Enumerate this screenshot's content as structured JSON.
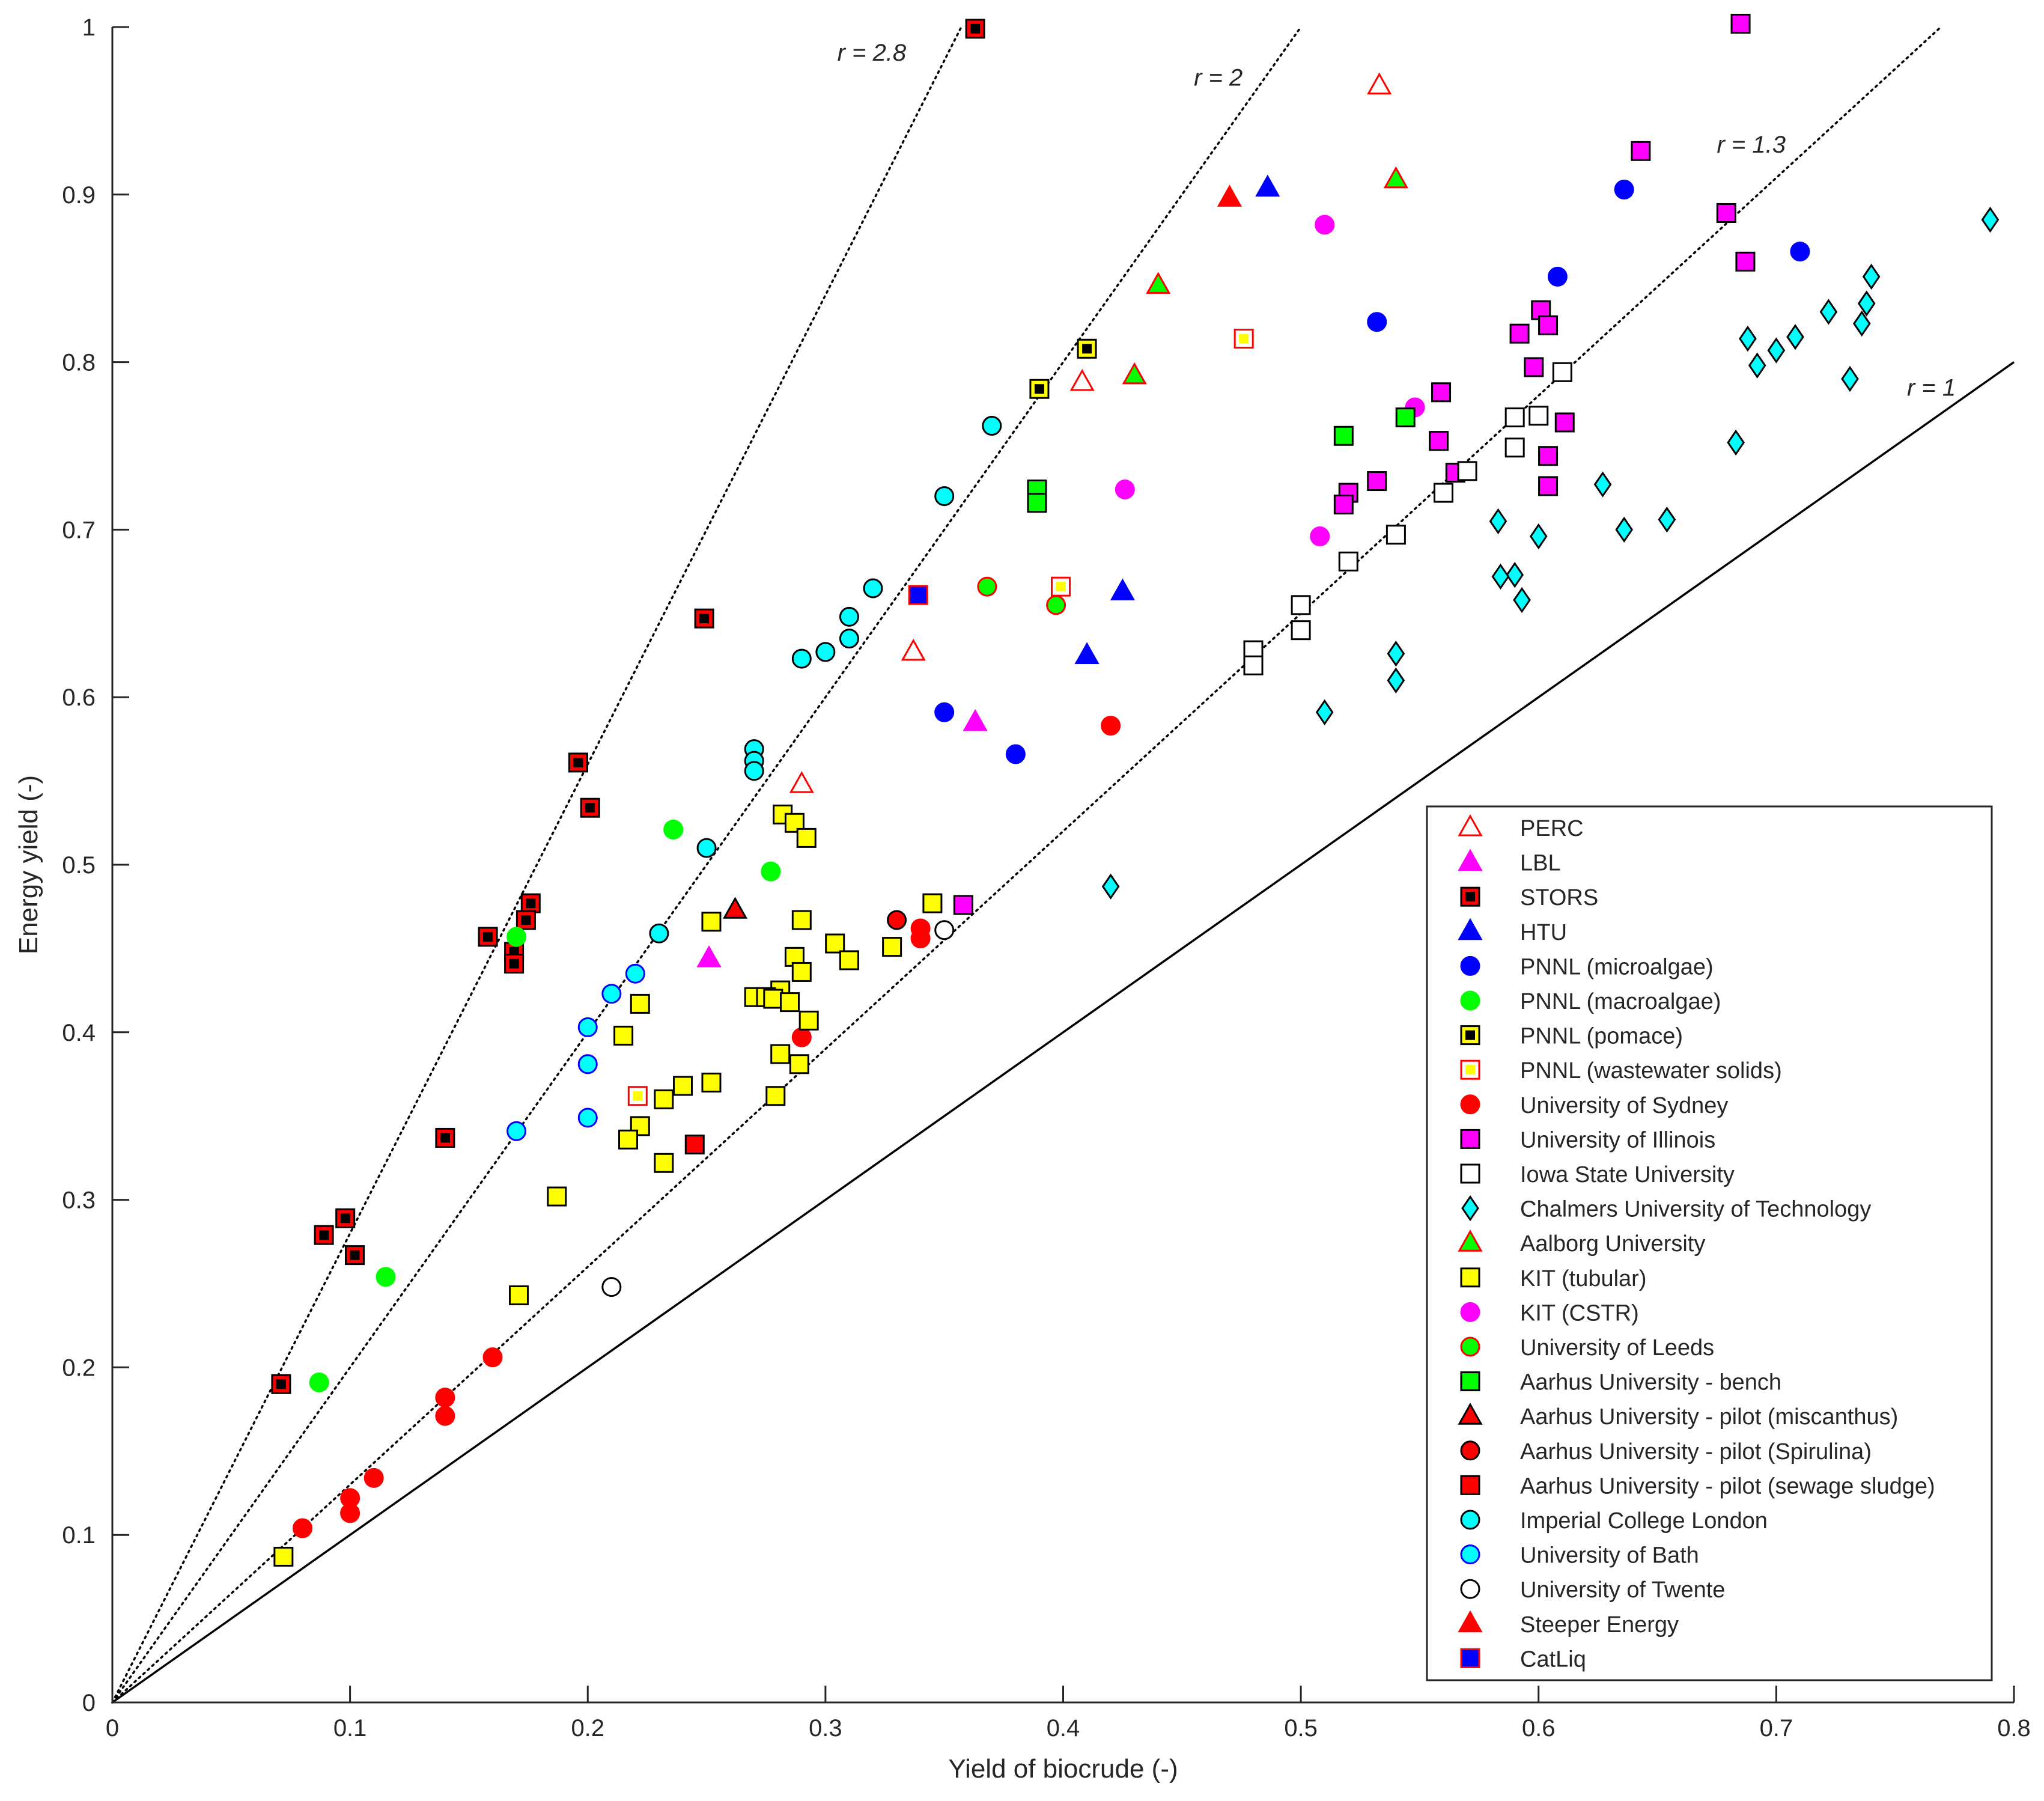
{
  "chart_data": {
    "type": "scatter",
    "xlabel": "Yield of biocrude (-)",
    "ylabel": "Energy yield (-)",
    "xlim": [
      0,
      0.8
    ],
    "ylim": [
      0,
      1
    ],
    "xticks": [
      "0",
      "0.1",
      "0.2",
      "0.3",
      "0.4",
      "0.5",
      "0.6",
      "0.7",
      "0.8"
    ],
    "yticks": [
      "0",
      "0.1",
      "0.2",
      "0.3",
      "0.4",
      "0.5",
      "0.6",
      "0.7",
      "0.8",
      "0.9",
      "1"
    ],
    "xtick_values": [
      0,
      0.1,
      0.2,
      0.3,
      0.4,
      0.5,
      0.6,
      0.7,
      0.8
    ],
    "ytick_values": [
      0,
      0.1,
      0.2,
      0.3,
      0.4,
      0.5,
      0.6,
      0.7,
      0.8,
      0.9,
      1
    ],
    "legend_position": "bottom-right",
    "reference_lines": [
      {
        "label": "r = 2.8",
        "slope": 2.8,
        "style": "dotted",
        "label_x": 0.305,
        "label_y": 0.985
      },
      {
        "label": "r = 2",
        "slope": 2,
        "style": "dotted",
        "label_x": 0.455,
        "label_y": 0.97
      },
      {
        "label": "r = 1.3",
        "slope": 1.3,
        "style": "dotted",
        "label_x": 0.675,
        "label_y": 0.93
      },
      {
        "label": "r = 1",
        "slope": 1,
        "style": "solid",
        "label_x": 0.755,
        "label_y": 0.785
      }
    ],
    "series": [
      {
        "name": "PERC",
        "marker": "triangle",
        "fill": "#ffffff",
        "edge": "#ff0000",
        "center": null,
        "points": [
          [
            0.533,
            0.965
          ],
          [
            0.337,
            0.627
          ],
          [
            0.408,
            0.788
          ],
          [
            0.29,
            0.548
          ]
        ]
      },
      {
        "name": "LBL",
        "marker": "triangle",
        "fill": "#ff00ff",
        "edge": "#ff00ff",
        "center": null,
        "points": [
          [
            0.363,
            0.585
          ],
          [
            0.251,
            0.444
          ]
        ]
      },
      {
        "name": "STORS",
        "marker": "square",
        "fill": "#ff0000",
        "edge": "#000000",
        "center": "#000000",
        "points": [
          [
            0.363,
            0.999
          ],
          [
            0.249,
            0.647
          ],
          [
            0.196,
            0.561
          ],
          [
            0.201,
            0.534
          ],
          [
            0.176,
            0.477
          ],
          [
            0.174,
            0.467
          ],
          [
            0.158,
            0.457
          ],
          [
            0.169,
            0.448
          ],
          [
            0.169,
            0.441
          ],
          [
            0.14,
            0.337
          ],
          [
            0.098,
            0.289
          ],
          [
            0.089,
            0.279
          ],
          [
            0.102,
            0.267
          ],
          [
            0.071,
            0.19
          ]
        ]
      },
      {
        "name": "HTU",
        "marker": "triangle",
        "fill": "#0000ff",
        "edge": "#0000ff",
        "center": null,
        "points": [
          [
            0.486,
            0.904
          ],
          [
            0.425,
            0.663
          ],
          [
            0.41,
            0.625
          ]
        ]
      },
      {
        "name": "PNNL (microalgae)",
        "marker": "circle",
        "fill": "#0000ff",
        "edge": "#0000ff",
        "center": null,
        "points": [
          [
            0.636,
            0.903
          ],
          [
            0.608,
            0.851
          ],
          [
            0.71,
            0.866
          ],
          [
            0.532,
            0.824
          ],
          [
            0.35,
            0.591
          ],
          [
            0.38,
            0.566
          ]
        ]
      },
      {
        "name": "PNNL (macroalgae)",
        "marker": "circle",
        "fill": "#00ff00",
        "edge": "#00ff00",
        "center": null,
        "points": [
          [
            0.236,
            0.521
          ],
          [
            0.277,
            0.496
          ],
          [
            0.17,
            0.457
          ],
          [
            0.115,
            0.254
          ],
          [
            0.087,
            0.191
          ]
        ]
      },
      {
        "name": "PNNL (pomace)",
        "marker": "square",
        "fill": "#ffff00",
        "edge": "#000000",
        "center": "#000000",
        "points": [
          [
            0.41,
            0.808
          ],
          [
            0.39,
            0.784
          ]
        ]
      },
      {
        "name": "PNNL (wastewater solids)",
        "marker": "square",
        "fill": "#ffffff",
        "edge": "#ff0000",
        "center": "#ffff00",
        "points": [
          [
            0.476,
            0.814
          ],
          [
            0.399,
            0.666
          ],
          [
            0.221,
            0.362
          ]
        ]
      },
      {
        "name": "University of Sydney",
        "marker": "circle",
        "fill": "#ff0000",
        "edge": "#ff0000",
        "center": null,
        "points": [
          [
            0.42,
            0.583
          ],
          [
            0.34,
            0.462
          ],
          [
            0.34,
            0.456
          ],
          [
            0.29,
            0.397
          ],
          [
            0.16,
            0.206
          ],
          [
            0.14,
            0.182
          ],
          [
            0.14,
            0.171
          ],
          [
            0.11,
            0.134
          ],
          [
            0.1,
            0.122
          ],
          [
            0.1,
            0.113
          ],
          [
            0.08,
            0.104
          ]
        ]
      },
      {
        "name": "University of Illinois",
        "marker": "square",
        "fill": "#ff00ff",
        "edge": "#000000",
        "center": null,
        "points": [
          [
            0.685,
            1.002
          ],
          [
            0.643,
            0.926
          ],
          [
            0.679,
            0.889
          ],
          [
            0.687,
            0.86
          ],
          [
            0.601,
            0.831
          ],
          [
            0.604,
            0.822
          ],
          [
            0.592,
            0.817
          ],
          [
            0.598,
            0.797
          ],
          [
            0.559,
            0.782
          ],
          [
            0.611,
            0.764
          ],
          [
            0.558,
            0.753
          ],
          [
            0.604,
            0.744
          ],
          [
            0.565,
            0.734
          ],
          [
            0.532,
            0.729
          ],
          [
            0.604,
            0.726
          ],
          [
            0.52,
            0.722
          ],
          [
            0.518,
            0.715
          ],
          [
            0.358,
            0.476
          ]
        ]
      },
      {
        "name": "Iowa State University",
        "marker": "square",
        "fill": "#ffffff",
        "edge": "#000000",
        "center": null,
        "points": [
          [
            0.61,
            0.794
          ],
          [
            0.6,
            0.768
          ],
          [
            0.59,
            0.767
          ],
          [
            0.59,
            0.749
          ],
          [
            0.57,
            0.735
          ],
          [
            0.56,
            0.722
          ],
          [
            0.54,
            0.697
          ],
          [
            0.52,
            0.681
          ],
          [
            0.5,
            0.655
          ],
          [
            0.5,
            0.64
          ],
          [
            0.48,
            0.628
          ],
          [
            0.48,
            0.619
          ]
        ]
      },
      {
        "name": "Chalmers University of Technology",
        "marker": "diamond",
        "fill": "#00ffff",
        "edge": "#000000",
        "center": null,
        "points": [
          [
            0.79,
            0.885
          ],
          [
            0.74,
            0.851
          ],
          [
            0.738,
            0.835
          ],
          [
            0.722,
            0.83
          ],
          [
            0.736,
            0.823
          ],
          [
            0.708,
            0.815
          ],
          [
            0.688,
            0.814
          ],
          [
            0.7,
            0.807
          ],
          [
            0.692,
            0.798
          ],
          [
            0.731,
            0.79
          ],
          [
            0.683,
            0.752
          ],
          [
            0.627,
            0.727
          ],
          [
            0.654,
            0.706
          ],
          [
            0.583,
            0.705
          ],
          [
            0.636,
            0.7
          ],
          [
            0.6,
            0.696
          ],
          [
            0.59,
            0.673
          ],
          [
            0.584,
            0.672
          ],
          [
            0.593,
            0.658
          ],
          [
            0.54,
            0.626
          ],
          [
            0.54,
            0.61
          ],
          [
            0.51,
            0.591
          ],
          [
            0.42,
            0.487
          ]
        ]
      },
      {
        "name": "Aalborg University",
        "marker": "triangle",
        "fill": "#00ff00",
        "edge": "#ff0000",
        "center": null,
        "points": [
          [
            0.54,
            0.909
          ],
          [
            0.44,
            0.846
          ],
          [
            0.43,
            0.792
          ]
        ]
      },
      {
        "name": "KIT (tubular)",
        "marker": "square",
        "fill": "#ffff00",
        "edge": "#000000",
        "center": null,
        "points": [
          [
            0.282,
            0.53
          ],
          [
            0.287,
            0.525
          ],
          [
            0.292,
            0.516
          ],
          [
            0.345,
            0.477
          ],
          [
            0.29,
            0.467
          ],
          [
            0.252,
            0.466
          ],
          [
            0.304,
            0.453
          ],
          [
            0.328,
            0.451
          ],
          [
            0.287,
            0.445
          ],
          [
            0.31,
            0.443
          ],
          [
            0.29,
            0.436
          ],
          [
            0.281,
            0.425
          ],
          [
            0.27,
            0.421
          ],
          [
            0.275,
            0.421
          ],
          [
            0.278,
            0.42
          ],
          [
            0.285,
            0.418
          ],
          [
            0.222,
            0.417
          ],
          [
            0.293,
            0.407
          ],
          [
            0.215,
            0.398
          ],
          [
            0.281,
            0.387
          ],
          [
            0.289,
            0.381
          ],
          [
            0.252,
            0.37
          ],
          [
            0.24,
            0.368
          ],
          [
            0.279,
            0.362
          ],
          [
            0.232,
            0.36
          ],
          [
            0.222,
            0.344
          ],
          [
            0.217,
            0.336
          ],
          [
            0.232,
            0.322
          ],
          [
            0.187,
            0.302
          ],
          [
            0.171,
            0.243
          ],
          [
            0.072,
            0.087
          ]
        ]
      },
      {
        "name": "KIT (CSTR)",
        "marker": "circle",
        "fill": "#ff00ff",
        "edge": "#ff00ff",
        "center": null,
        "points": [
          [
            0.51,
            0.882
          ],
          [
            0.548,
            0.773
          ],
          [
            0.426,
            0.724
          ],
          [
            0.508,
            0.696
          ]
        ]
      },
      {
        "name": "University of Leeds",
        "marker": "circle",
        "fill": "#00ff00",
        "edge": "#ff0000",
        "center": null,
        "points": [
          [
            0.368,
            0.666
          ],
          [
            0.397,
            0.655
          ]
        ]
      },
      {
        "name": "Aarhus University - bench",
        "marker": "square",
        "fill": "#00ff00",
        "edge": "#000000",
        "center": null,
        "points": [
          [
            0.518,
            0.756
          ],
          [
            0.544,
            0.767
          ],
          [
            0.389,
            0.724
          ],
          [
            0.389,
            0.716
          ]
        ]
      },
      {
        "name": "Aarhus University - pilot (miscanthus)",
        "marker": "triangle",
        "fill": "#ff0000",
        "edge": "#000000",
        "center": null,
        "points": [
          [
            0.262,
            0.473
          ]
        ]
      },
      {
        "name": "Aarhus University - pilot (Spirulina)",
        "marker": "circle",
        "fill": "#ff0000",
        "edge": "#000000",
        "center": null,
        "points": [
          [
            0.33,
            0.467
          ]
        ]
      },
      {
        "name": "Aarhus University - pilot (sewage sludge)",
        "marker": "square",
        "fill": "#ff0000",
        "edge": "#000000",
        "center": null,
        "points": [
          [
            0.245,
            0.333
          ]
        ]
      },
      {
        "name": "Imperial College London",
        "marker": "circle",
        "fill": "#00ffff",
        "edge": "#000000",
        "center": null,
        "points": [
          [
            0.37,
            0.762
          ],
          [
            0.35,
            0.72
          ],
          [
            0.32,
            0.665
          ],
          [
            0.31,
            0.648
          ],
          [
            0.31,
            0.635
          ],
          [
            0.3,
            0.627
          ],
          [
            0.29,
            0.623
          ],
          [
            0.27,
            0.569
          ],
          [
            0.27,
            0.562
          ],
          [
            0.27,
            0.556
          ],
          [
            0.25,
            0.51
          ],
          [
            0.23,
            0.459
          ]
        ]
      },
      {
        "name": "University of Bath",
        "marker": "circle",
        "fill": "#00ffff",
        "edge": "#0000ff",
        "center": null,
        "points": [
          [
            0.22,
            0.435
          ],
          [
            0.21,
            0.423
          ],
          [
            0.2,
            0.403
          ],
          [
            0.2,
            0.381
          ],
          [
            0.2,
            0.349
          ],
          [
            0.17,
            0.341
          ]
        ]
      },
      {
        "name": "University of Twente",
        "marker": "circle",
        "fill": "#ffffff",
        "edge": "#000000",
        "center": null,
        "points": [
          [
            0.35,
            0.461
          ],
          [
            0.21,
            0.248
          ]
        ]
      },
      {
        "name": "Steeper Energy",
        "marker": "triangle",
        "fill": "#ff0000",
        "edge": "#ff0000",
        "center": null,
        "points": [
          [
            0.47,
            0.898
          ]
        ]
      },
      {
        "name": "CatLiq",
        "marker": "square",
        "fill": "#0000ff",
        "edge": "#ff0000",
        "center": null,
        "points": [
          [
            0.339,
            0.661
          ]
        ]
      }
    ]
  }
}
